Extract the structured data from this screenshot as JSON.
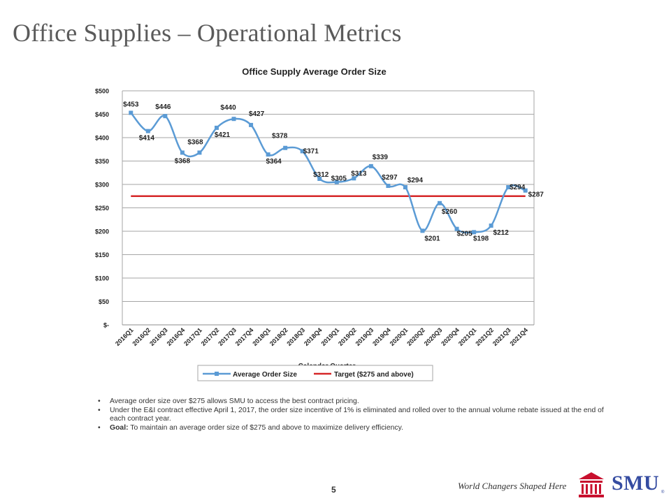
{
  "slide": {
    "title": "Office Supplies – Operational Metrics",
    "page_number": "5",
    "tagline": "World Changers Shaped Here",
    "logo_text": "SMU",
    "logo_reg": "®",
    "colors": {
      "series": "#5b9bd5",
      "target": "#d62728",
      "brand": "#354ca1",
      "emblem": "#c8102e"
    }
  },
  "bullets": [
    {
      "bold": "",
      "text": "Average order size over $275 allows SMU to access the best contract pricing."
    },
    {
      "bold": "",
      "text": "Under the E&I contract effective April 1, 2017, the order size incentive of 1% is eliminated and rolled over to the annual volume rebate issued at the end of each contract year."
    },
    {
      "bold": "Goal:",
      "text": "  To maintain an average order size of $275 and above to maximize delivery efficiency."
    }
  ],
  "chart_data": {
    "type": "line",
    "title": "Office Supply Average Order Size",
    "xlabel": "Calendar Quarter",
    "ylabel": "",
    "ylim": [
      0,
      500
    ],
    "yticks": [
      0,
      50,
      100,
      150,
      200,
      250,
      300,
      350,
      400,
      450,
      500
    ],
    "ytick_labels": [
      "$-",
      "$50",
      "$100",
      "$150",
      "$200",
      "$250",
      "$300",
      "$350",
      "$400",
      "$450",
      "$500"
    ],
    "categories": [
      "2016Q1",
      "2016Q2",
      "2016Q3",
      "2016Q4",
      "2017Q1",
      "2017Q2",
      "2017Q3",
      "2017Q4",
      "2018Q1",
      "2018Q2",
      "2018Q3",
      "2018Q4",
      "2019Q1",
      "2019Q2",
      "2019Q3",
      "2019Q4",
      "2020Q1",
      "2020Q2",
      "2020Q3",
      "2020Q4",
      "2021Q1",
      "2021Q2",
      "2021Q3",
      "2021Q4"
    ],
    "series": [
      {
        "name": "Average Order Size",
        "values": [
          453,
          414,
          446,
          368,
          368,
          421,
          440,
          427,
          364,
          378,
          371,
          312,
          305,
          313,
          339,
          297,
          294,
          201,
          260,
          205,
          198,
          212,
          294,
          287
        ],
        "labels": [
          "$453",
          "$414",
          "$446",
          "$368",
          "$368",
          "$421",
          "$440",
          "$427",
          "$364",
          "$378",
          "$371",
          "$312",
          "$305",
          "$313",
          "$339",
          "$297",
          "$294",
          "$201",
          "$260",
          "$205",
          "$198",
          "$212",
          "$294",
          "$287"
        ]
      },
      {
        "name": "Target ($275 and above)",
        "values": [
          275,
          275,
          275,
          275,
          275,
          275,
          275,
          275,
          275,
          275,
          275,
          275,
          275,
          275,
          275,
          275,
          275,
          275,
          275,
          275,
          275,
          275,
          275,
          275
        ]
      }
    ],
    "grid": true,
    "legend": "bottom"
  }
}
